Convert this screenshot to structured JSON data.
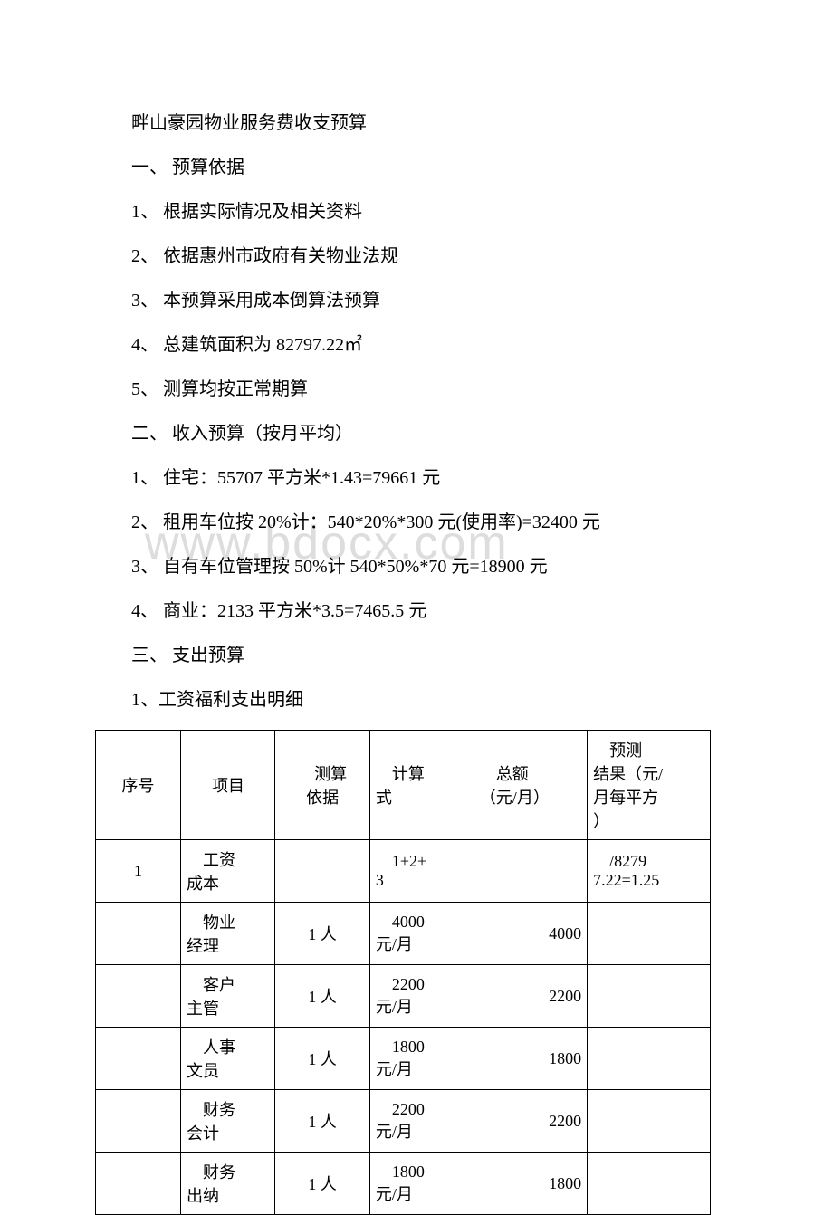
{
  "title": "畔山豪园物业服务费收支预算",
  "section1_heading": "一、 预算依据",
  "section1_items": [
    "1、 根据实际情况及相关资料",
    "2、 依据惠州市政府有关物业法规",
    "3、 本预算采用成本倒算法预算",
    "4、 总建筑面积为 82797.22㎡",
    "5、 测算均按正常期算"
  ],
  "section2_heading": "二、 收入预算（按月平均）",
  "section2_items": [
    "1、 住宅：55707 平方米*1.43=79661 元",
    "2、 租用车位按 20%计：540*20%*300 元(使用率)=32400 元",
    "3、 自有车位管理按 50%计 540*50%*70 元=18900 元",
    "4、 商业：2133 平方米*3.5=7465.5 元"
  ],
  "section3_heading": "三、 支出预算",
  "section3_sub": "1、工资福利支出明细",
  "watermark_text": "www.bdocx.com",
  "table": {
    "headers": {
      "seq": "序号",
      "item": "项目",
      "basis": "测算依据",
      "calc": "计算式",
      "total": "总额（元/月）",
      "result": "预测结果（元/月每平方）"
    },
    "rows": [
      {
        "seq": "1",
        "item": "工资成本",
        "basis": "",
        "calc": "1+2+3",
        "total": "",
        "result": "/82797.22=1.25"
      },
      {
        "seq": "",
        "item": "物业经理",
        "basis": "1 人",
        "calc": "4000元/月",
        "total": "4000",
        "result": ""
      },
      {
        "seq": "",
        "item": "客户主管",
        "basis": "1 人",
        "calc": "2200元/月",
        "total": "2200",
        "result": ""
      },
      {
        "seq": "",
        "item": "人事文员",
        "basis": "1 人",
        "calc": "1800元/月",
        "total": "1800",
        "result": ""
      },
      {
        "seq": "",
        "item": "财务会计",
        "basis": "1 人",
        "calc": "2200元/月",
        "total": "2200",
        "result": ""
      },
      {
        "seq": "",
        "item": "财务出纳",
        "basis": "1 人",
        "calc": "1800元/月",
        "total": "1800",
        "result": ""
      }
    ]
  }
}
